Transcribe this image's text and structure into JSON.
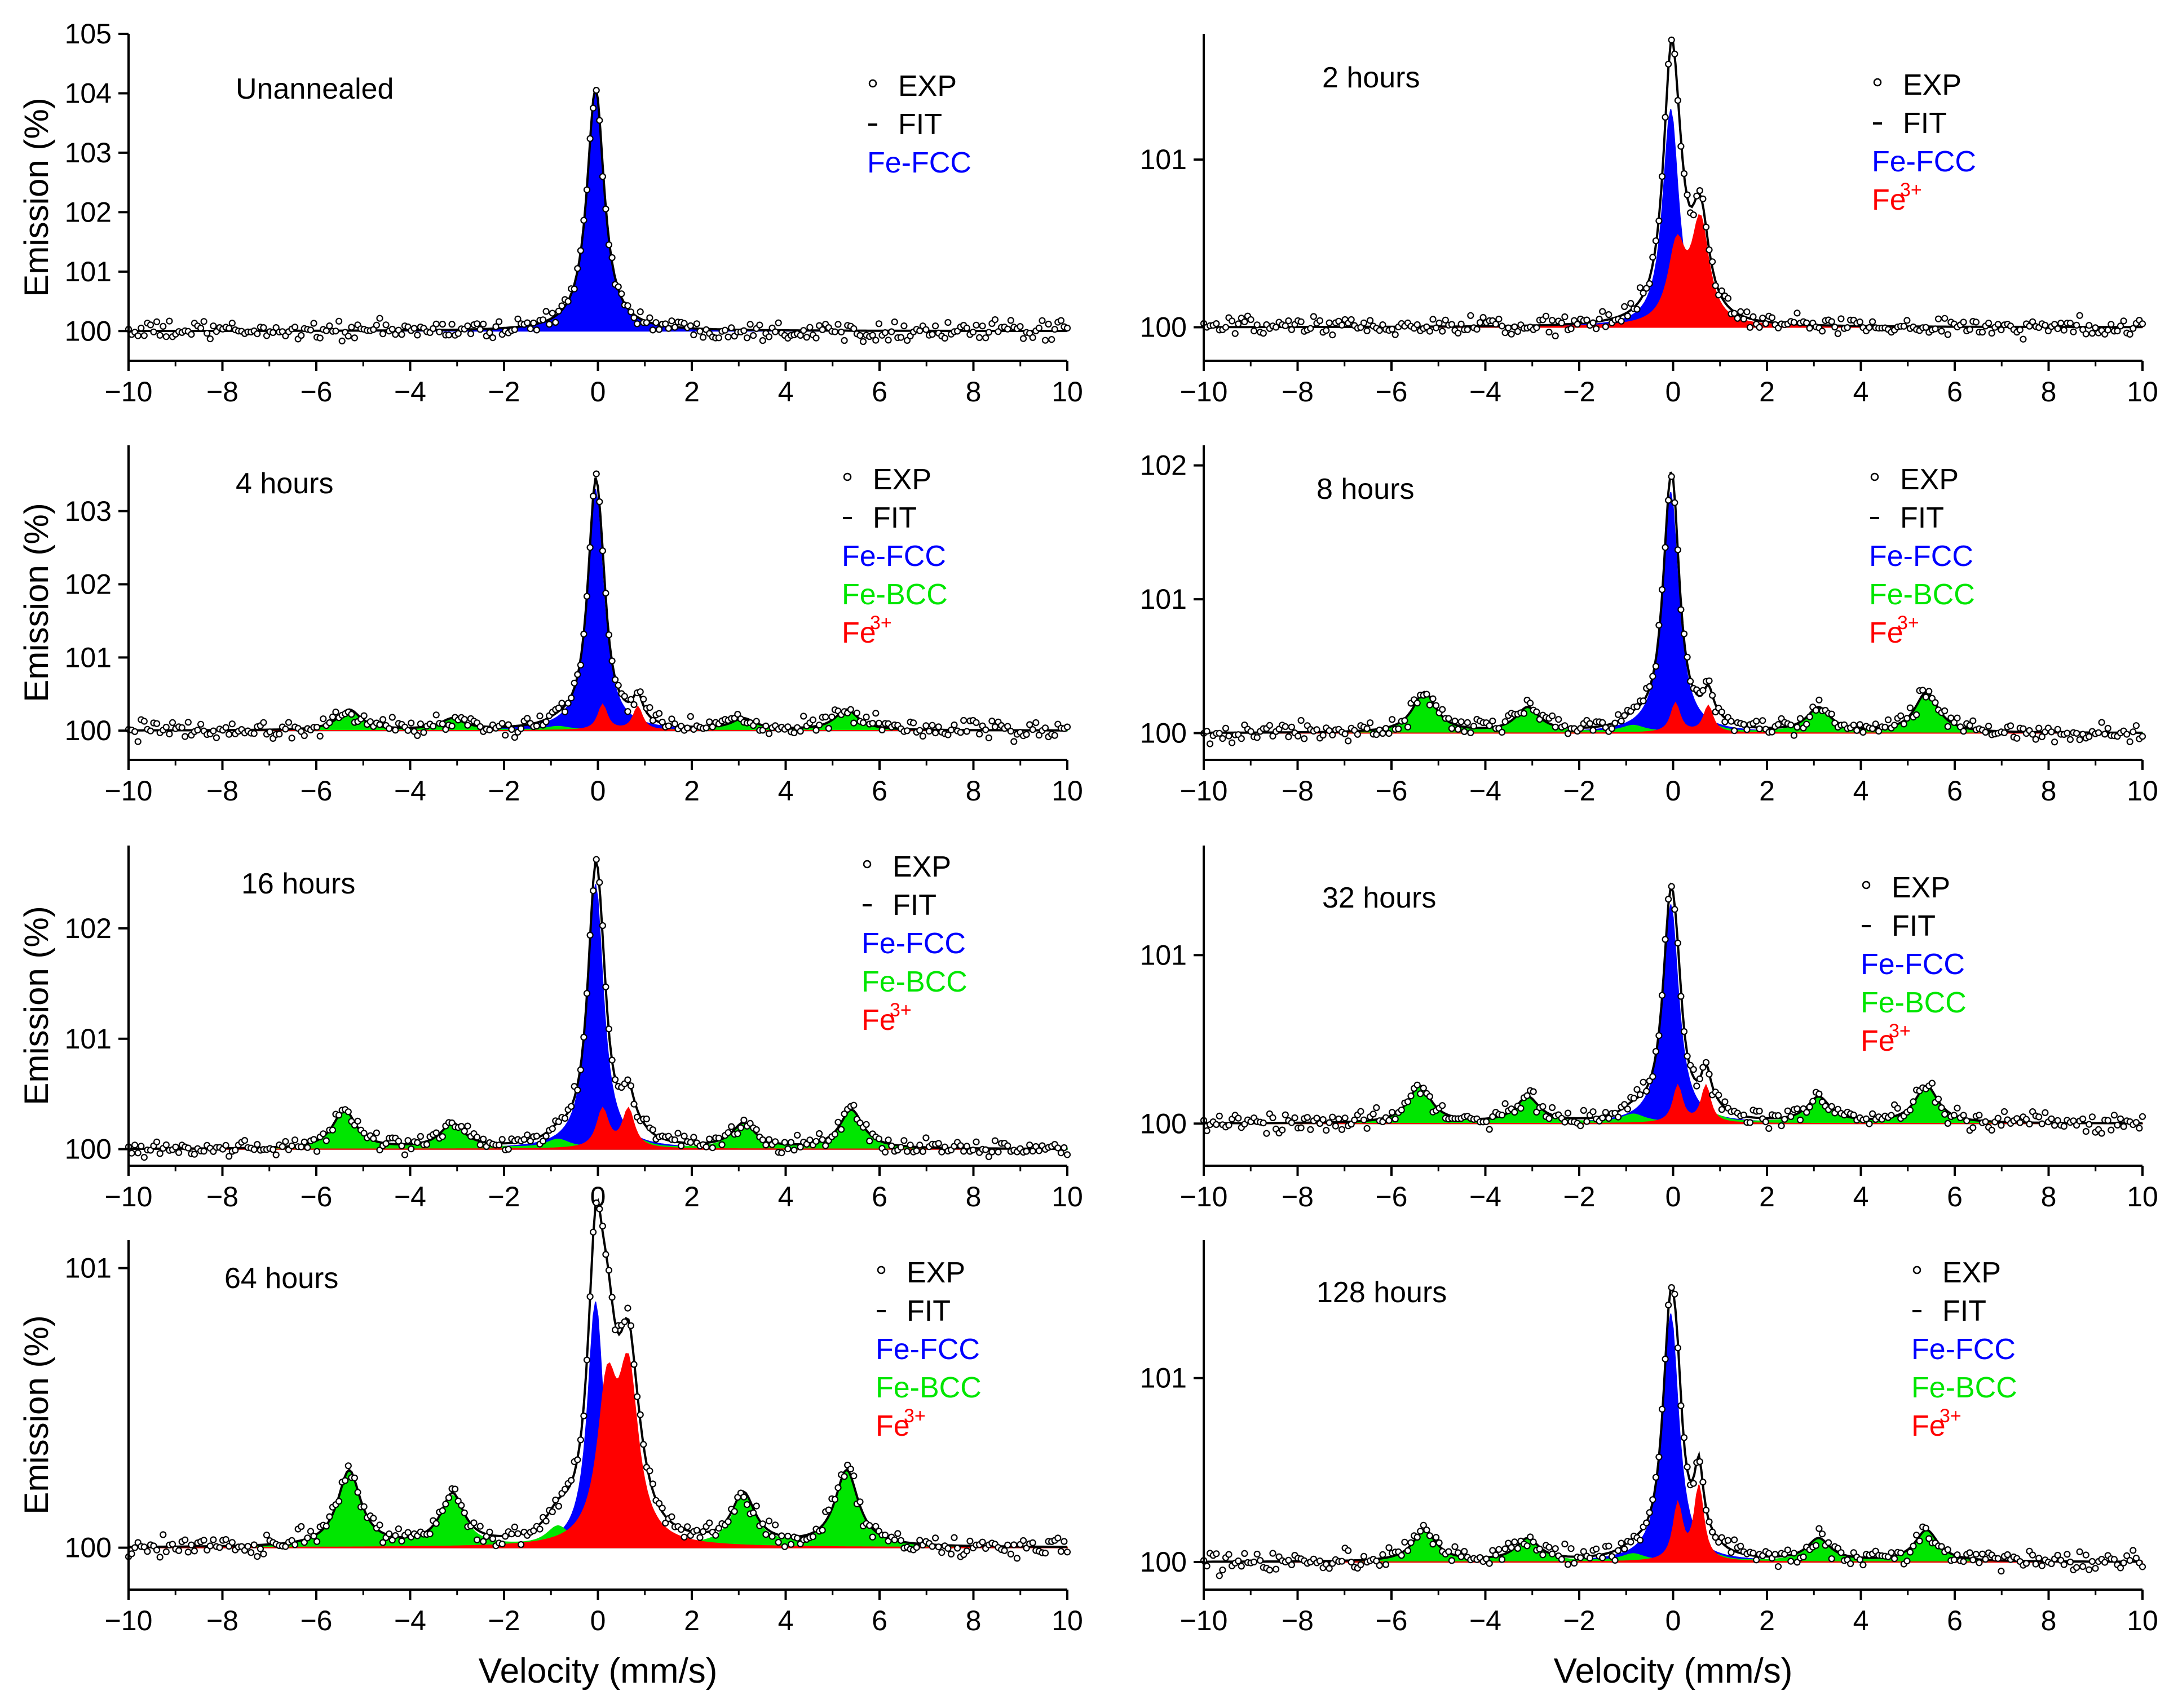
{
  "figure": {
    "xlabel": "Velocity (mm/s)",
    "ylabel": "Emission (%)",
    "legend_exp": "EXP",
    "legend_fit": "FIT",
    "legend_fcc": "Fe-FCC",
    "legend_bcc": "Fe-BCC",
    "legend_fe3_base": "Fe",
    "legend_fe3_sup": "3+"
  },
  "colors": {
    "fcc": "#0000ff",
    "bcc": "#00e600",
    "fe3": "#ff0000",
    "axis": "#000000",
    "points": "#000000",
    "fit": "#000000"
  },
  "chart_data": [
    {
      "type": "line",
      "title": "Unannealed",
      "xlim": [
        -10,
        10
      ],
      "ylim": [
        99.5,
        105
      ],
      "xticks": [
        -10,
        -8,
        -6,
        -4,
        -2,
        0,
        2,
        4,
        6,
        8,
        10
      ],
      "yticks": [
        100,
        101,
        102,
        103,
        104,
        105
      ],
      "xlabel": "",
      "ylabel": "Emission (%)",
      "legend": [
        "EXP",
        "FIT",
        "Fe-FCC"
      ],
      "components": [
        {
          "name": "Fe-FCC",
          "color": "#0000ff",
          "peaks": [
            {
              "center": -0.05,
              "height": 4.1,
              "hwhm": 0.22
            }
          ]
        }
      ]
    },
    {
      "type": "line",
      "title": "2 hours",
      "xlim": [
        -10,
        10
      ],
      "ylim": [
        99.8,
        101.75
      ],
      "xticks": [
        -10,
        -8,
        -6,
        -4,
        -2,
        0,
        2,
        4,
        6,
        8,
        10
      ],
      "yticks": [
        100,
        101
      ],
      "xlabel": "",
      "ylabel": "",
      "legend": [
        "EXP",
        "FIT",
        "Fe-FCC",
        "Fe"
      ],
      "components": [
        {
          "name": "Fe-FCC",
          "color": "#0000ff",
          "peaks": [
            {
              "center": -0.05,
              "height": 1.3,
              "hwhm": 0.2
            }
          ]
        },
        {
          "name": "Fe3+",
          "color": "#ff0000",
          "peaks": [
            {
              "center": 0.08,
              "height": 0.45,
              "hwhm": 0.22
            },
            {
              "center": 0.58,
              "height": 0.6,
              "hwhm": 0.22
            }
          ]
        }
      ]
    },
    {
      "type": "line",
      "title": "4 hours",
      "xlim": [
        -10,
        10
      ],
      "ylim": [
        99.6,
        103.9
      ],
      "xticks": [
        -10,
        -8,
        -6,
        -4,
        -2,
        0,
        2,
        4,
        6,
        8,
        10
      ],
      "yticks": [
        100,
        101,
        102,
        103
      ],
      "xlabel": "",
      "ylabel": "Emission (%)",
      "legend": [
        "EXP",
        "FIT",
        "Fe-FCC",
        "Fe-BCC",
        "Fe"
      ],
      "components": [
        {
          "name": "Fe-FCC",
          "color": "#0000ff",
          "peaks": [
            {
              "center": -0.05,
              "height": 3.3,
              "hwhm": 0.2
            }
          ]
        },
        {
          "name": "Fe-BCC",
          "color": "#00e600",
          "peaks": [
            {
              "center": -5.3,
              "height": 0.28,
              "hwhm": 0.3
            },
            {
              "center": -3.1,
              "height": 0.15,
              "hwhm": 0.3
            },
            {
              "center": -0.85,
              "height": 0.05,
              "hwhm": 0.3
            },
            {
              "center": 0.85,
              "height": 0.05,
              "hwhm": 0.3
            },
            {
              "center": 3.1,
              "height": 0.15,
              "hwhm": 0.3
            },
            {
              "center": 5.3,
              "height": 0.28,
              "hwhm": 0.3
            }
          ]
        },
        {
          "name": "Fe3+",
          "color": "#ff0000",
          "peaks": [
            {
              "center": 0.1,
              "height": 0.35,
              "hwhm": 0.12
            },
            {
              "center": 0.85,
              "height": 0.32,
              "hwhm": 0.12
            }
          ]
        }
      ]
    },
    {
      "type": "line",
      "title": "8 hours",
      "xlim": [
        -10,
        10
      ],
      "ylim": [
        99.8,
        102.15
      ],
      "xticks": [
        -10,
        -8,
        -6,
        -4,
        -2,
        0,
        2,
        4,
        6,
        8,
        10
      ],
      "yticks": [
        100,
        101,
        102
      ],
      "xlabel": "",
      "ylabel": "",
      "legend": [
        "EXP",
        "FIT",
        "Fe-FCC",
        "Fe-BCC",
        "Fe"
      ],
      "components": [
        {
          "name": "Fe-FCC",
          "color": "#0000ff",
          "peaks": [
            {
              "center": -0.05,
              "height": 1.8,
              "hwhm": 0.2
            }
          ]
        },
        {
          "name": "Fe-BCC",
          "color": "#00e600",
          "peaks": [
            {
              "center": -5.3,
              "height": 0.3,
              "hwhm": 0.3
            },
            {
              "center": -3.1,
              "height": 0.18,
              "hwhm": 0.3
            },
            {
              "center": -0.85,
              "height": 0.05,
              "hwhm": 0.3
            },
            {
              "center": 0.85,
              "height": 0.05,
              "hwhm": 0.3
            },
            {
              "center": 3.1,
              "height": 0.18,
              "hwhm": 0.3
            },
            {
              "center": 5.4,
              "height": 0.3,
              "hwhm": 0.3
            }
          ]
        },
        {
          "name": "Fe3+",
          "color": "#ff0000",
          "peaks": [
            {
              "center": 0.05,
              "height": 0.22,
              "hwhm": 0.12
            },
            {
              "center": 0.75,
              "height": 0.2,
              "hwhm": 0.12
            }
          ]
        }
      ]
    },
    {
      "type": "line",
      "title": "16 hours",
      "xlim": [
        -10,
        10
      ],
      "ylim": [
        99.85,
        102.75
      ],
      "xticks": [
        -10,
        -8,
        -6,
        -4,
        -2,
        0,
        2,
        4,
        6,
        8,
        10
      ],
      "yticks": [
        100,
        101,
        102
      ],
      "xlabel": "",
      "ylabel": "Emission (%)",
      "legend": [
        "EXP",
        "FIT",
        "Fe-FCC",
        "Fe-BCC",
        "Fe"
      ],
      "components": [
        {
          "name": "Fe-FCC",
          "color": "#0000ff",
          "peaks": [
            {
              "center": -0.05,
              "height": 2.4,
              "hwhm": 0.2
            }
          ]
        },
        {
          "name": "Fe-BCC",
          "color": "#00e600",
          "peaks": [
            {
              "center": -5.4,
              "height": 0.35,
              "hwhm": 0.3
            },
            {
              "center": -3.1,
              "height": 0.22,
              "hwhm": 0.3
            },
            {
              "center": -0.85,
              "height": 0.08,
              "hwhm": 0.3
            },
            {
              "center": 0.85,
              "height": 0.08,
              "hwhm": 0.3
            },
            {
              "center": 3.1,
              "height": 0.22,
              "hwhm": 0.3
            },
            {
              "center": 5.4,
              "height": 0.35,
              "hwhm": 0.3
            }
          ]
        },
        {
          "name": "Fe3+",
          "color": "#ff0000",
          "peaks": [
            {
              "center": 0.1,
              "height": 0.35,
              "hwhm": 0.15
            },
            {
              "center": 0.65,
              "height": 0.35,
              "hwhm": 0.15
            }
          ]
        }
      ]
    },
    {
      "type": "line",
      "title": "32 hours",
      "xlim": [
        -10,
        10
      ],
      "ylim": [
        99.75,
        101.65
      ],
      "xticks": [
        -10,
        -8,
        -6,
        -4,
        -2,
        0,
        2,
        4,
        6,
        8,
        10
      ],
      "yticks": [
        100,
        101
      ],
      "xlabel": "",
      "ylabel": "",
      "legend": [
        "EXP",
        "FIT",
        "Fe-FCC",
        "Fe-BCC",
        "Fe"
      ],
      "components": [
        {
          "name": "Fe-FCC",
          "color": "#0000ff",
          "peaks": [
            {
              "center": -0.05,
              "height": 1.3,
              "hwhm": 0.2
            }
          ]
        },
        {
          "name": "Fe-BCC",
          "color": "#00e600",
          "peaks": [
            {
              "center": -5.4,
              "height": 0.22,
              "hwhm": 0.3
            },
            {
              "center": -3.1,
              "height": 0.15,
              "hwhm": 0.3
            },
            {
              "center": -0.85,
              "height": 0.05,
              "hwhm": 0.3
            },
            {
              "center": 0.85,
              "height": 0.05,
              "hwhm": 0.3
            },
            {
              "center": 3.1,
              "height": 0.15,
              "hwhm": 0.3
            },
            {
              "center": 5.4,
              "height": 0.22,
              "hwhm": 0.3
            }
          ]
        },
        {
          "name": "Fe3+",
          "color": "#ff0000",
          "peaks": [
            {
              "center": 0.1,
              "height": 0.22,
              "hwhm": 0.12
            },
            {
              "center": 0.7,
              "height": 0.22,
              "hwhm": 0.12
            }
          ]
        }
      ]
    },
    {
      "type": "line",
      "title": "64 hours",
      "xlim": [
        -10,
        10
      ],
      "ylim": [
        99.85,
        101.1
      ],
      "xticks": [
        -10,
        -8,
        -6,
        -4,
        -2,
        0,
        2,
        4,
        6,
        8,
        10
      ],
      "yticks": [
        100,
        101
      ],
      "xlabel": "Velocity (mm/s)",
      "ylabel": "Emission (%)",
      "legend": [
        "EXP",
        "FIT",
        "Fe-FCC",
        "Fe-BCC",
        "Fe"
      ],
      "components": [
        {
          "name": "Fe-FCC",
          "color": "#0000ff",
          "peaks": [
            {
              "center": -0.05,
              "height": 0.88,
              "hwhm": 0.2
            }
          ]
        },
        {
          "name": "Fe-BCC",
          "color": "#00e600",
          "peaks": [
            {
              "center": -5.3,
              "height": 0.27,
              "hwhm": 0.3
            },
            {
              "center": -3.1,
              "height": 0.18,
              "hwhm": 0.3
            },
            {
              "center": -0.85,
              "height": 0.07,
              "hwhm": 0.3
            },
            {
              "center": 0.85,
              "height": 0.07,
              "hwhm": 0.3
            },
            {
              "center": 3.1,
              "height": 0.18,
              "hwhm": 0.3
            },
            {
              "center": 5.3,
              "height": 0.27,
              "hwhm": 0.3
            }
          ]
        },
        {
          "name": "Fe3+",
          "color": "#ff0000",
          "peaks": [
            {
              "center": 0.2,
              "height": 0.52,
              "hwhm": 0.25
            },
            {
              "center": 0.65,
              "height": 0.57,
              "hwhm": 0.25
            }
          ]
        }
      ]
    },
    {
      "type": "line",
      "title": "128 hours",
      "xlim": [
        -10,
        10
      ],
      "ylim": [
        99.85,
        101.75
      ],
      "xticks": [
        -10,
        -8,
        -6,
        -4,
        -2,
        0,
        2,
        4,
        6,
        8,
        10
      ],
      "yticks": [
        100,
        101
      ],
      "xlabel": "Velocity (mm/s)",
      "ylabel": "",
      "legend": [
        "EXP",
        "FIT",
        "Fe-FCC",
        "Fe-BCC",
        "Fe"
      ],
      "components": [
        {
          "name": "Fe-FCC",
          "color": "#0000ff",
          "peaks": [
            {
              "center": -0.05,
              "height": 1.35,
              "hwhm": 0.2
            }
          ]
        },
        {
          "name": "Fe-BCC",
          "color": "#00e600",
          "peaks": [
            {
              "center": -5.3,
              "height": 0.17,
              "hwhm": 0.3
            },
            {
              "center": -3.1,
              "height": 0.12,
              "hwhm": 0.3
            },
            {
              "center": -0.85,
              "height": 0.04,
              "hwhm": 0.3
            },
            {
              "center": 0.85,
              "height": 0.04,
              "hwhm": 0.3
            },
            {
              "center": 3.1,
              "height": 0.12,
              "hwhm": 0.3
            },
            {
              "center": 5.4,
              "height": 0.17,
              "hwhm": 0.3
            }
          ]
        },
        {
          "name": "Fe3+",
          "color": "#ff0000",
          "peaks": [
            {
              "center": 0.1,
              "height": 0.3,
              "hwhm": 0.12
            },
            {
              "center": 0.55,
              "height": 0.4,
              "hwhm": 0.12
            }
          ]
        }
      ]
    }
  ]
}
